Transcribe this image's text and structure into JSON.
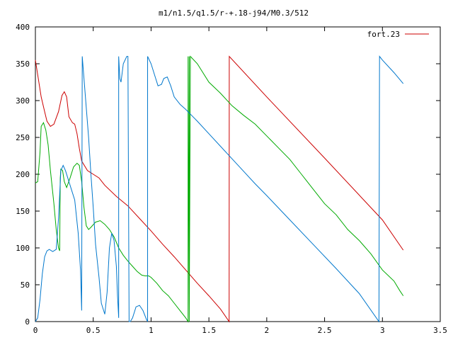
{
  "chart_data": {
    "type": "line",
    "title": "m1/n1.5/q1.5/r-+.18-j94/M0.3/512",
    "xlabel": "",
    "ylabel": "",
    "xlim": [
      0,
      3.5
    ],
    "ylim": [
      0,
      400
    ],
    "x_ticks": [
      0,
      0.5,
      1,
      1.5,
      2,
      2.5,
      3,
      3.5
    ],
    "x_tick_labels": [
      "0",
      "0.5",
      "1",
      "1.5",
      "2",
      "2.5",
      "3",
      "3.5"
    ],
    "y_ticks": [
      0,
      50,
      100,
      150,
      200,
      250,
      300,
      350,
      400
    ],
    "y_tick_labels": [
      "0",
      "50",
      "100",
      "150",
      "200",
      "250",
      "300",
      "350",
      "400"
    ],
    "grid": false,
    "legend_position": "top-right",
    "series": [
      {
        "name": "fort.23",
        "color": "#cc0000",
        "points": [
          [
            0,
            355
          ],
          [
            0.02,
            335
          ],
          [
            0.05,
            305
          ],
          [
            0.08,
            285
          ],
          [
            0.1,
            272
          ],
          [
            0.13,
            265
          ],
          [
            0.16,
            268
          ],
          [
            0.2,
            285
          ],
          [
            0.23,
            307
          ],
          [
            0.25,
            312
          ],
          [
            0.27,
            305
          ],
          [
            0.29,
            278
          ],
          [
            0.32,
            270
          ],
          [
            0.34,
            268
          ],
          [
            0.36,
            255
          ],
          [
            0.38,
            235
          ],
          [
            0.4,
            218
          ],
          [
            0.45,
            205
          ],
          [
            0.5,
            200
          ],
          [
            0.55,
            195
          ],
          [
            0.6,
            185
          ],
          [
            0.7,
            170
          ],
          [
            0.8,
            157
          ],
          [
            0.9,
            140
          ],
          [
            1.0,
            123
          ],
          [
            1.1,
            105
          ],
          [
            1.2,
            88
          ],
          [
            1.3,
            70
          ],
          [
            1.4,
            52
          ],
          [
            1.5,
            35
          ],
          [
            1.6,
            17
          ],
          [
            1.675,
            0
          ],
          [
            1.676,
            360
          ],
          [
            2.0,
            305
          ],
          [
            2.5,
            222
          ],
          [
            3.0,
            138
          ],
          [
            3.18,
            97
          ]
        ]
      },
      {
        "color": "#00aa00",
        "points": [
          [
            0,
            188
          ],
          [
            0.02,
            190
          ],
          [
            0.04,
            230
          ],
          [
            0.05,
            265
          ],
          [
            0.07,
            270
          ],
          [
            0.09,
            260
          ],
          [
            0.11,
            240
          ],
          [
            0.13,
            205
          ],
          [
            0.16,
            160
          ],
          [
            0.18,
            125
          ],
          [
            0.2,
            100
          ],
          [
            0.21,
            96
          ],
          [
            0.215,
            195
          ],
          [
            0.22,
            207
          ],
          [
            0.235,
            205
          ],
          [
            0.25,
            190
          ],
          [
            0.27,
            182
          ],
          [
            0.3,
            195
          ],
          [
            0.33,
            210
          ],
          [
            0.36,
            215
          ],
          [
            0.38,
            212
          ],
          [
            0.4,
            190
          ],
          [
            0.42,
            155
          ],
          [
            0.44,
            130
          ],
          [
            0.46,
            125
          ],
          [
            0.48,
            128
          ],
          [
            0.52,
            135
          ],
          [
            0.56,
            137
          ],
          [
            0.6,
            132
          ],
          [
            0.64,
            125
          ],
          [
            0.68,
            115
          ],
          [
            0.72,
            100
          ],
          [
            0.76,
            90
          ],
          [
            0.8,
            82
          ],
          [
            0.84,
            75
          ],
          [
            0.88,
            68
          ],
          [
            0.92,
            63
          ],
          [
            0.95,
            62
          ],
          [
            0.98,
            62
          ],
          [
            1.0,
            60
          ],
          [
            1.05,
            52
          ],
          [
            1.1,
            42
          ],
          [
            1.15,
            35
          ],
          [
            1.2,
            25
          ],
          [
            1.25,
            15
          ],
          [
            1.3,
            5
          ],
          [
            1.32,
            0
          ],
          [
            1.32,
            360
          ],
          [
            1.32,
            0
          ],
          [
            1.33,
            360
          ],
          [
            1.33,
            0
          ],
          [
            1.34,
            360
          ],
          [
            1.4,
            350
          ],
          [
            1.5,
            325
          ],
          [
            1.6,
            310
          ],
          [
            1.7,
            293
          ],
          [
            1.8,
            280
          ],
          [
            1.9,
            268
          ],
          [
            2.0,
            252
          ],
          [
            2.1,
            236
          ],
          [
            2.2,
            220
          ],
          [
            2.3,
            200
          ],
          [
            2.4,
            180
          ],
          [
            2.5,
            160
          ],
          [
            2.6,
            145
          ],
          [
            2.7,
            125
          ],
          [
            2.8,
            110
          ],
          [
            2.9,
            92
          ],
          [
            3.0,
            70
          ],
          [
            3.1,
            55
          ],
          [
            3.15,
            42
          ],
          [
            3.18,
            35
          ]
        ]
      },
      {
        "color": "#0077cc",
        "points": [
          [
            0,
            0
          ],
          [
            0.02,
            5
          ],
          [
            0.04,
            30
          ],
          [
            0.06,
            65
          ],
          [
            0.08,
            88
          ],
          [
            0.1,
            96
          ],
          [
            0.12,
            98
          ],
          [
            0.15,
            95
          ],
          [
            0.18,
            98
          ],
          [
            0.2,
            140
          ],
          [
            0.22,
            205
          ],
          [
            0.24,
            212
          ],
          [
            0.26,
            205
          ],
          [
            0.28,
            195
          ],
          [
            0.31,
            180
          ],
          [
            0.34,
            165
          ],
          [
            0.37,
            120
          ],
          [
            0.39,
            70
          ],
          [
            0.4,
            15
          ],
          [
            0.405,
            360
          ],
          [
            0.42,
            330
          ],
          [
            0.44,
            290
          ],
          [
            0.46,
            250
          ],
          [
            0.48,
            200
          ],
          [
            0.5,
            155
          ],
          [
            0.52,
            105
          ],
          [
            0.55,
            60
          ],
          [
            0.57,
            25
          ],
          [
            0.6,
            10
          ],
          [
            0.62,
            40
          ],
          [
            0.64,
            100
          ],
          [
            0.66,
            120
          ],
          [
            0.68,
            110
          ],
          [
            0.7,
            75
          ],
          [
            0.71,
            35
          ],
          [
            0.72,
            5
          ],
          [
            0.72,
            360
          ],
          [
            0.73,
            330
          ],
          [
            0.74,
            325
          ],
          [
            0.76,
            350
          ],
          [
            0.79,
            360
          ],
          [
            0.8,
            360
          ],
          [
            0.8,
            360
          ],
          [
            0.81,
            0
          ],
          [
            0.82,
            0
          ],
          [
            0.84,
            5
          ],
          [
            0.87,
            20
          ],
          [
            0.9,
            22
          ],
          [
            0.93,
            15
          ],
          [
            0.96,
            3
          ],
          [
            0.97,
            0
          ],
          [
            0.97,
            360
          ],
          [
            1.0,
            350
          ],
          [
            1.03,
            335
          ],
          [
            1.06,
            320
          ],
          [
            1.09,
            322
          ],
          [
            1.11,
            330
          ],
          [
            1.14,
            332
          ],
          [
            1.17,
            320
          ],
          [
            1.2,
            305
          ],
          [
            1.25,
            295
          ],
          [
            1.3,
            288
          ],
          [
            1.35,
            280
          ],
          [
            1.4,
            272
          ],
          [
            1.5,
            255
          ],
          [
            1.6,
            238
          ],
          [
            1.7,
            221
          ],
          [
            1.8,
            204
          ],
          [
            1.9,
            187
          ],
          [
            2.0,
            171
          ],
          [
            2.2,
            138
          ],
          [
            2.4,
            105
          ],
          [
            2.6,
            72
          ],
          [
            2.8,
            38
          ],
          [
            2.97,
            0
          ],
          [
            2.975,
            360
          ],
          [
            3.0,
            355
          ],
          [
            3.1,
            338
          ],
          [
            3.18,
            323
          ]
        ]
      }
    ]
  }
}
